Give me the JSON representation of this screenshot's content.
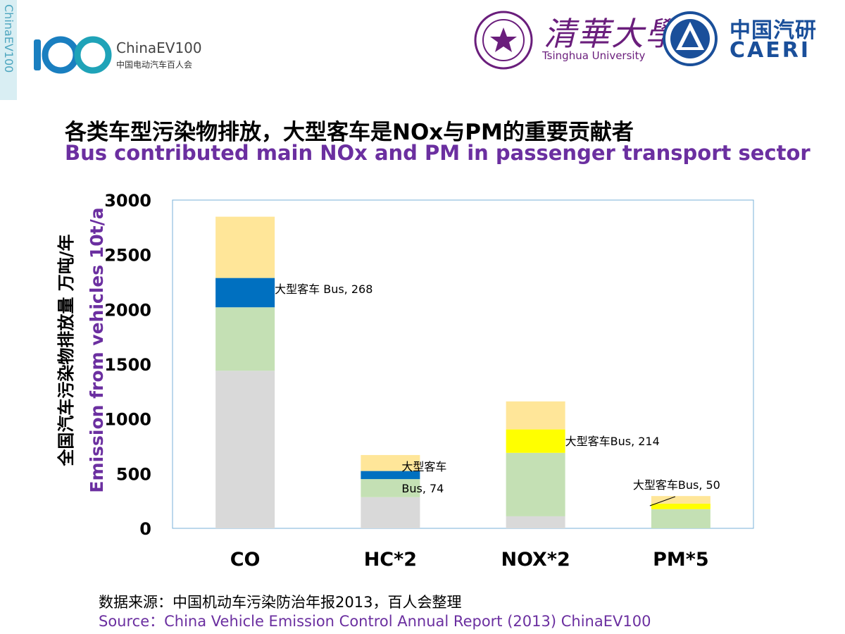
{
  "header": {
    "side_text": "ChinaEV100",
    "brand_name": "ChinaEV100",
    "brand_sub": "中国电动汽车百人会",
    "tsinghua_cn": "清華大學",
    "tsinghua_en": "Tsinghua University",
    "caeri_cn": "中国汽研",
    "caeri_en": "CAERI"
  },
  "title": {
    "cn": "各类车型污染物排放，大型客车是NOx与PM的重要贡献者",
    "en": "Bus contributed main NOx and PM in passenger transport sector"
  },
  "chart_data": {
    "type": "bar",
    "stacked": true,
    "categories": [
      "CO",
      "HC*2",
      "NOX*2",
      "PM*5"
    ],
    "ylabel_cn": "全国汽车污染物排放量 万吨/年",
    "ylabel_en": "Emission from vehicles 10t/a",
    "ylim": [
      0,
      3000
    ],
    "yticks": [
      "0",
      "500",
      "1000",
      "1500",
      "2000",
      "2500",
      "3000"
    ],
    "grid": false,
    "series": [
      {
        "color": "#d9d9d9",
        "values": [
          1440,
          285,
          110,
          0
        ]
      },
      {
        "color": "#c4e0b4",
        "values": [
          580,
          165,
          580,
          175
        ]
      },
      {
        "color": "#0070c0",
        "values": [
          268,
          74,
          0,
          0
        ]
      },
      {
        "color": "#ffff00",
        "values": [
          0,
          0,
          214,
          50
        ]
      },
      {
        "color": "#ffe699",
        "values": [
          560,
          146,
          256,
          70
        ]
      }
    ],
    "annotations": [
      {
        "category": "CO",
        "lines": [
          "大型客车 Bus, 268"
        ]
      },
      {
        "category": "HC*2",
        "lines": [
          "大型客车",
          "Bus, 74"
        ]
      },
      {
        "category": "NOX*2",
        "lines": [
          "大型客车Bus, 214"
        ]
      },
      {
        "category": "PM*5",
        "lines": [
          "大型客车Bus, 50"
        ]
      }
    ]
  },
  "source": {
    "cn": "数据来源：中国机动车污染防治年报2013，百人会整理",
    "en": "Source：China Vehicle Emission Control Annual Report (2013) ChinaEV100"
  }
}
